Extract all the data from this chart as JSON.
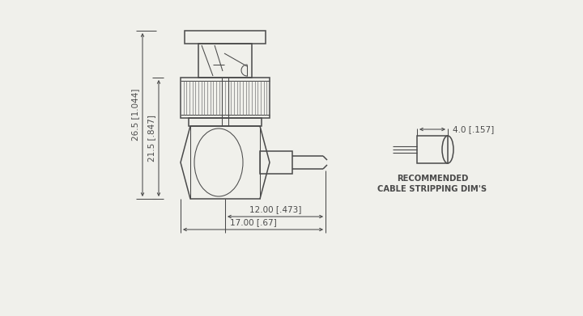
{
  "bg_color": "#f0f0eb",
  "line_color": "#4a4a4a",
  "dim_color": "#4a4a4a",
  "lw": 1.1,
  "tlw": 0.75,
  "dlw": 0.75,
  "klw": 0.5,
  "fs": 7.5,
  "fs_label": 7.2,
  "dim_26_5": "26.5 [1.044]",
  "dim_21_5": "21.5 [.847]",
  "dim_12": "12.00 [.473]",
  "dim_17": "17.00 [.67]",
  "dim_4": "4.0 [.157]",
  "rec1": "RECOMMENDED",
  "rec2": "CABLE STRIPPING DIM'S"
}
